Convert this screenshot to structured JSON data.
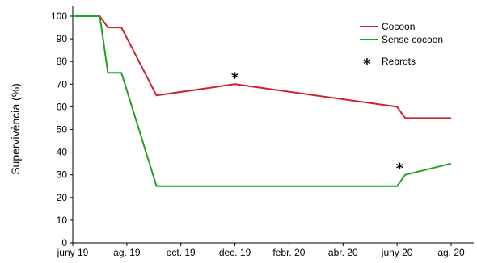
{
  "chart_data": {
    "type": "line",
    "xlabel": "",
    "ylabel": "Supervivència (%)",
    "ylim": [
      0,
      100
    ],
    "yticks": [
      0,
      10,
      20,
      30,
      40,
      50,
      60,
      70,
      80,
      90,
      100
    ],
    "x_tick_labels": [
      "juny 19",
      "ag. 19",
      "oct. 19",
      "dec. 19",
      "febr. 20",
      "abr. 20",
      "juny 20",
      "ag. 20"
    ],
    "xlim_months": [
      0,
      14
    ],
    "grid": false,
    "legend_position": "top-right",
    "series": [
      {
        "name": "Cocoon",
        "color": "#cc2233",
        "points": [
          {
            "m": 0,
            "y": 100
          },
          {
            "m": 1,
            "y": 100
          },
          {
            "m": 1.3,
            "y": 95
          },
          {
            "m": 1.8,
            "y": 95
          },
          {
            "m": 3.1,
            "y": 65
          },
          {
            "m": 6,
            "y": 70
          },
          {
            "m": 12,
            "y": 60
          },
          {
            "m": 12.3,
            "y": 55
          },
          {
            "m": 14,
            "y": 55
          }
        ]
      },
      {
        "name": "Sense cocoon",
        "color": "#22a022",
        "points": [
          {
            "m": 0,
            "y": 100
          },
          {
            "m": 1,
            "y": 100
          },
          {
            "m": 1.3,
            "y": 75
          },
          {
            "m": 1.8,
            "y": 75
          },
          {
            "m": 3.1,
            "y": 25
          },
          {
            "m": 12,
            "y": 25
          },
          {
            "m": 12.3,
            "y": 30
          },
          {
            "m": 14,
            "y": 35
          }
        ]
      }
    ],
    "rebrots_marker": {
      "label": "Rebrots",
      "symbol": "*"
    },
    "annotations": [
      {
        "symbol": "*",
        "m": 6,
        "y": 70
      },
      {
        "symbol": "*",
        "m": 12.1,
        "y": 30
      }
    ]
  }
}
